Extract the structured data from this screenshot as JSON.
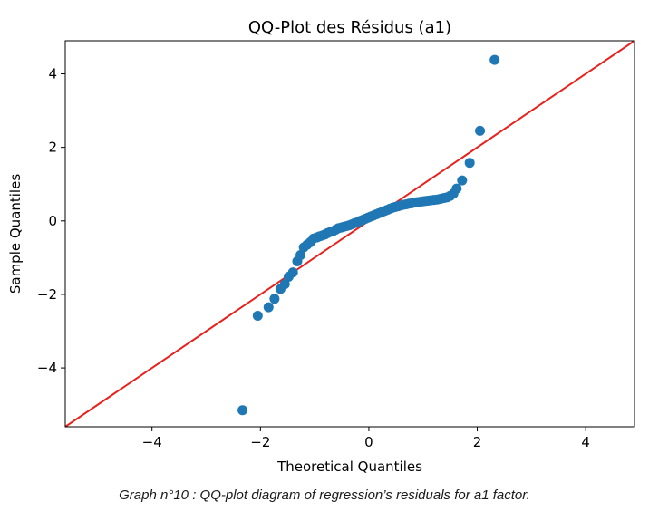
{
  "caption": "Graph n°10 : QQ-plot diagram of regression’s residuals for a1 factor.",
  "colors": {
    "points": "#1f77b4",
    "reference_line": "#e8211c",
    "axes": "#000000"
  },
  "chart_data": {
    "type": "scatter",
    "title": "QQ-Plot des Résidus (a1)",
    "xlabel": "Theoretical Quantiles",
    "ylabel": "Sample Quantiles",
    "xlim": [
      -5.6,
      4.9
    ],
    "ylim": [
      -5.6,
      4.9
    ],
    "xticks": [
      -4,
      -2,
      0,
      2,
      4
    ],
    "yticks": [
      -4,
      -2,
      0,
      2,
      4
    ],
    "tick_labels": [
      "−4",
      "−2",
      "0",
      "2",
      "4"
    ],
    "reference_line": {
      "slope": 1,
      "intercept": 0
    },
    "grid": false,
    "points": [
      [
        -2.33,
        -5.15
      ],
      [
        -2.05,
        -2.58
      ],
      [
        -1.85,
        -2.35
      ],
      [
        -1.74,
        -2.12
      ],
      [
        -1.63,
        -1.85
      ],
      [
        -1.55,
        -1.72
      ],
      [
        -1.48,
        -1.52
      ],
      [
        -1.4,
        -1.4
      ],
      [
        -1.32,
        -1.1
      ],
      [
        -1.26,
        -0.93
      ],
      [
        -1.2,
        -0.72
      ],
      [
        -1.14,
        -0.65
      ],
      [
        -1.08,
        -0.58
      ],
      [
        -1.02,
        -0.48
      ],
      [
        -0.96,
        -0.45
      ],
      [
        -0.91,
        -0.42
      ],
      [
        -0.86,
        -0.4
      ],
      [
        -0.81,
        -0.37
      ],
      [
        -0.76,
        -0.33
      ],
      [
        -0.71,
        -0.3
      ],
      [
        -0.66,
        -0.28
      ],
      [
        -0.61,
        -0.24
      ],
      [
        -0.56,
        -0.2
      ],
      [
        -0.51,
        -0.18
      ],
      [
        -0.46,
        -0.16
      ],
      [
        -0.41,
        -0.14
      ],
      [
        -0.36,
        -0.12
      ],
      [
        -0.31,
        -0.09
      ],
      [
        -0.26,
        -0.06
      ],
      [
        -0.21,
        -0.04
      ],
      [
        -0.16,
        0.0
      ],
      [
        -0.11,
        0.03
      ],
      [
        -0.06,
        0.06
      ],
      [
        -0.01,
        0.09
      ],
      [
        0.04,
        0.12
      ],
      [
        0.09,
        0.15
      ],
      [
        0.14,
        0.18
      ],
      [
        0.19,
        0.21
      ],
      [
        0.24,
        0.24
      ],
      [
        0.29,
        0.27
      ],
      [
        0.34,
        0.3
      ],
      [
        0.39,
        0.33
      ],
      [
        0.44,
        0.36
      ],
      [
        0.49,
        0.38
      ],
      [
        0.54,
        0.4
      ],
      [
        0.59,
        0.42
      ],
      [
        0.64,
        0.44
      ],
      [
        0.69,
        0.45
      ],
      [
        0.74,
        0.47
      ],
      [
        0.79,
        0.48
      ],
      [
        0.84,
        0.5
      ],
      [
        0.89,
        0.51
      ],
      [
        0.94,
        0.52
      ],
      [
        0.99,
        0.53
      ],
      [
        1.04,
        0.54
      ],
      [
        1.09,
        0.55
      ],
      [
        1.14,
        0.56
      ],
      [
        1.2,
        0.57
      ],
      [
        1.26,
        0.58
      ],
      [
        1.32,
        0.6
      ],
      [
        1.38,
        0.62
      ],
      [
        1.44,
        0.64
      ],
      [
        1.5,
        0.68
      ],
      [
        1.56,
        0.74
      ],
      [
        1.62,
        0.88
      ],
      [
        1.72,
        1.1
      ],
      [
        1.86,
        1.58
      ],
      [
        2.05,
        2.45
      ],
      [
        2.32,
        4.38
      ]
    ]
  }
}
